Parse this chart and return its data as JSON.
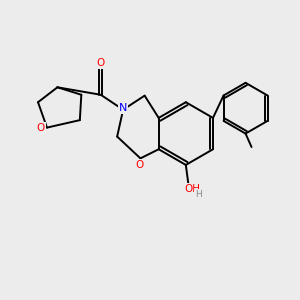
{
  "bg_color": "#ececec",
  "bond_color": "#000000",
  "bond_width": 1.4,
  "atom_colors": {
    "O": "#ff0000",
    "N": "#0000ff",
    "C": "#000000",
    "H": "#808080"
  }
}
